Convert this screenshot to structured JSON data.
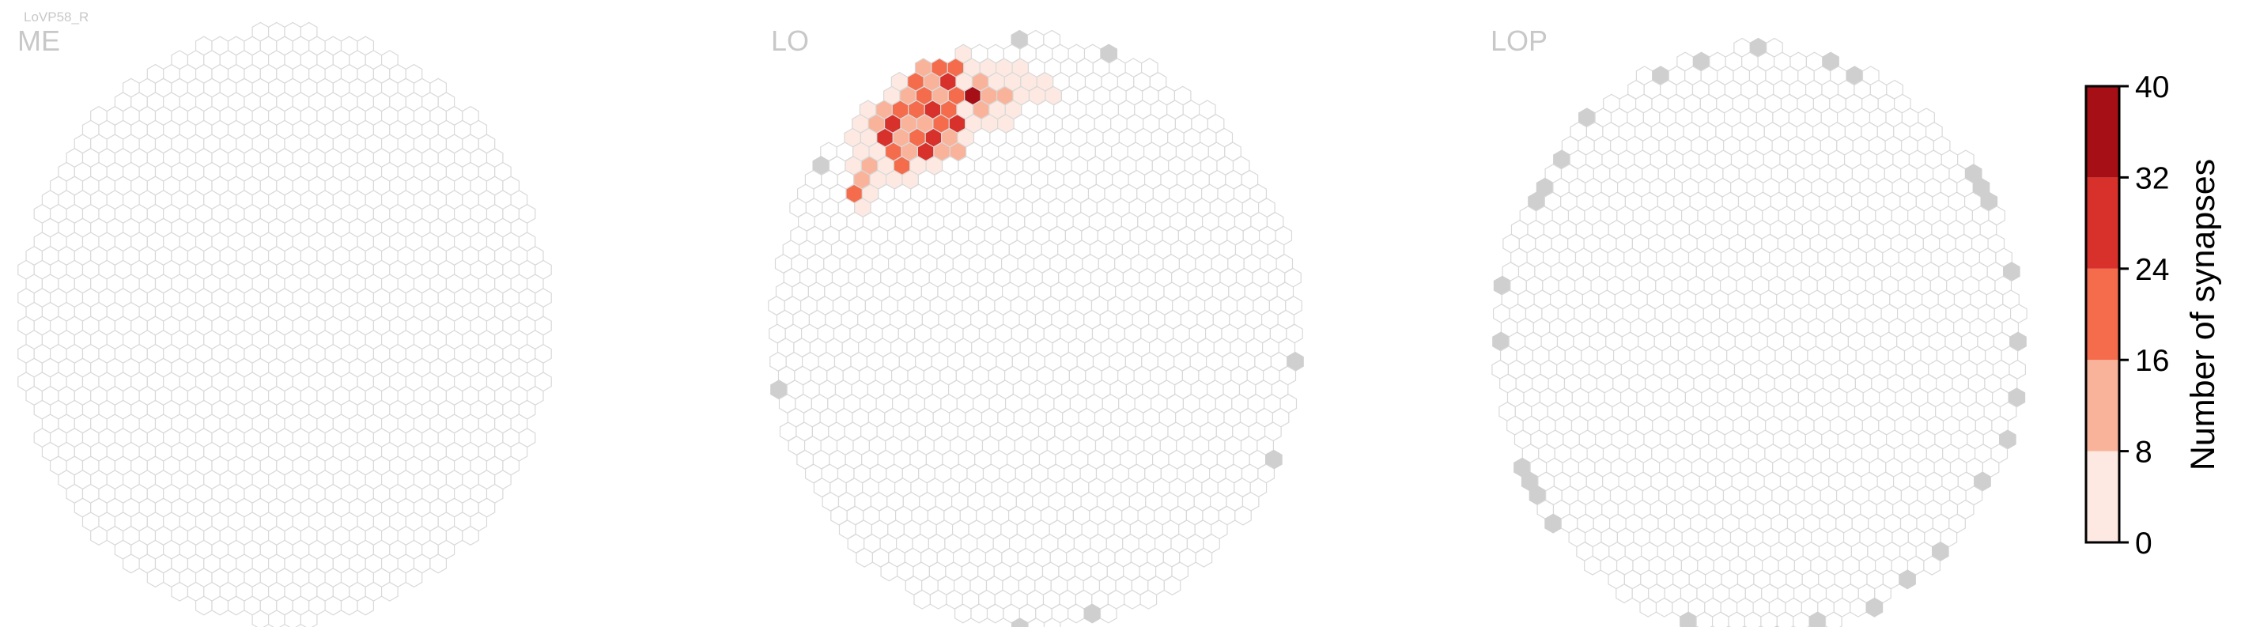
{
  "cell_type_label": "LoVP58_R",
  "chart_data": {
    "type": "heatmap",
    "panels": [
      {
        "name": "ME",
        "hot_cells": [],
        "gray_edge_cells": []
      },
      {
        "name": "LO",
        "hot_cells": [
          [
            -6,
            -21,
            8
          ],
          [
            -5,
            -21,
            16
          ],
          [
            -4,
            -21,
            16
          ],
          [
            -6,
            -20,
            16
          ],
          [
            -5,
            -20,
            8
          ],
          [
            -4,
            -20,
            8
          ],
          [
            -7,
            -19,
            16
          ],
          [
            -6,
            -19,
            24
          ],
          [
            -5,
            -19,
            24
          ],
          [
            -4,
            -19,
            8
          ],
          [
            -3,
            -19,
            8
          ],
          [
            -2,
            -19,
            8
          ],
          [
            -1,
            -19,
            8
          ],
          [
            -8,
            -18,
            8
          ],
          [
            -7,
            -18,
            24
          ],
          [
            -6,
            -18,
            16
          ],
          [
            -5,
            -18,
            32
          ],
          [
            -4,
            -18,
            8
          ],
          [
            -3,
            -18,
            16
          ],
          [
            -2,
            -18,
            8
          ],
          [
            -1,
            -18,
            8
          ],
          [
            0,
            -18,
            8
          ],
          [
            1,
            -18,
            8
          ],
          [
            -9,
            -17,
            8
          ],
          [
            -8,
            -17,
            16
          ],
          [
            -7,
            -17,
            24
          ],
          [
            -6,
            -17,
            16
          ],
          [
            -5,
            -17,
            24
          ],
          [
            -4,
            -17,
            40
          ],
          [
            -3,
            -17,
            16
          ],
          [
            -2,
            -17,
            16
          ],
          [
            -1,
            -17,
            8
          ],
          [
            0,
            -17,
            8
          ],
          [
            1,
            -17,
            8
          ],
          [
            -10,
            -16,
            8
          ],
          [
            -9,
            -16,
            16
          ],
          [
            -8,
            -16,
            24
          ],
          [
            -7,
            -16,
            24
          ],
          [
            -6,
            -16,
            32
          ],
          [
            -5,
            -16,
            24
          ],
          [
            -4,
            -16,
            8
          ],
          [
            -3,
            -16,
            16
          ],
          [
            -2,
            -16,
            8
          ],
          [
            -1,
            -16,
            8
          ],
          [
            -11,
            -15,
            8
          ],
          [
            -10,
            -15,
            16
          ],
          [
            -9,
            -15,
            32
          ],
          [
            -8,
            -15,
            16
          ],
          [
            -7,
            -15,
            16
          ],
          [
            -6,
            -15,
            24
          ],
          [
            -5,
            -15,
            32
          ],
          [
            -4,
            -15,
            8
          ],
          [
            -3,
            -15,
            8
          ],
          [
            -2,
            -15,
            8
          ],
          [
            -12,
            -14,
            8
          ],
          [
            -11,
            -14,
            8
          ],
          [
            -10,
            -14,
            8
          ],
          [
            -9,
            -14,
            32
          ],
          [
            -8,
            -14,
            16
          ],
          [
            -7,
            -14,
            24
          ],
          [
            -6,
            -14,
            32
          ],
          [
            -5,
            -14,
            16
          ],
          [
            -4,
            -14,
            8
          ],
          [
            -11,
            -13,
            8
          ],
          [
            -10,
            -13,
            8
          ],
          [
            -9,
            -13,
            24
          ],
          [
            -8,
            -13,
            16
          ],
          [
            -7,
            -13,
            32
          ],
          [
            -6,
            -13,
            16
          ],
          [
            -5,
            -13,
            16
          ],
          [
            -11,
            -12,
            8
          ],
          [
            -10,
            -12,
            16
          ],
          [
            -9,
            -12,
            8
          ],
          [
            -8,
            -12,
            24
          ],
          [
            -7,
            -12,
            8
          ],
          [
            -6,
            -12,
            8
          ],
          [
            -11,
            -11,
            16
          ],
          [
            -10,
            -11,
            8
          ],
          [
            -9,
            -11,
            8
          ],
          [
            -8,
            -11,
            8
          ],
          [
            -11,
            -10,
            24
          ],
          [
            -10,
            -10,
            8
          ],
          [
            -11,
            -9,
            8
          ]
        ],
        "gray_edge_cells": []
      },
      {
        "name": "LOP",
        "hot_cells": [],
        "gray_edge_cells": []
      }
    ],
    "colorbar": {
      "title": "Number of synapses",
      "ticks": [
        0,
        8,
        16,
        24,
        32,
        40
      ],
      "range": [
        0,
        40
      ],
      "bin_colors": [
        "#fde9e2",
        "#f9b39b",
        "#f56c4c",
        "#d8302a",
        "#a50f15"
      ]
    },
    "colors": {
      "empty_cell_fill": "#ffffff",
      "cell_outline": "#d9d9d9",
      "missing_cell_fill": "#cfcfcf",
      "label_gray": "#c8c8c8"
    }
  }
}
